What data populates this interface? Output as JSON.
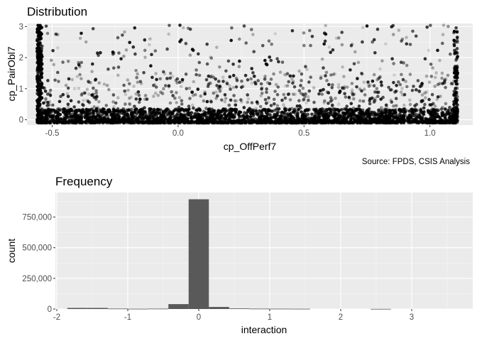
{
  "chart_data": [
    {
      "type": "scatter",
      "title": "Distribution",
      "xlabel": "cp_OffPerf7",
      "ylabel": "cp_PairObl7",
      "caption": "Source: FPDS, CSIS Analysis",
      "xlim": [
        -0.6,
        1.17
      ],
      "ylim": [
        -0.17,
        3.1
      ],
      "x_ticks": [
        -0.5,
        0.0,
        0.5,
        1.0
      ],
      "x_tick_labels": [
        "-0.5",
        "0.0",
        "0.5",
        "1.0"
      ],
      "y_ticks": [
        0,
        1,
        2,
        3
      ],
      "y_tick_labels": [
        "0",
        "1",
        "2",
        "3"
      ],
      "x_range_of_points": [
        -0.56,
        1.11
      ],
      "y_range_of_points": [
        -0.1,
        3.05
      ],
      "point_color": "#000000",
      "point_alpha": 0.2,
      "note": "dense band of points near y = 0 across the full x range, sparser points up to y = 3, dense columns at x = -0.56 and x = 1.11"
    },
    {
      "type": "bar",
      "title": "Frequency",
      "xlabel": "interaction",
      "ylabel": "count",
      "xlim": [
        -2.02,
        3.86
      ],
      "ylim": [
        0,
        950000
      ],
      "x_ticks": [
        -2,
        -1,
        0,
        1,
        2,
        3
      ],
      "x_tick_labels": [
        "-2",
        "-1",
        "0",
        "1",
        "2",
        "3"
      ],
      "y_ticks": [
        0,
        250000,
        500000,
        750000
      ],
      "y_tick_labels": [
        "0",
        "250,000",
        "500,000",
        "750,000"
      ],
      "bin_width": 0.285,
      "bin_centers": [
        -1.71,
        -1.425,
        -1.14,
        -0.855,
        -0.57,
        -0.285,
        0.0,
        0.285,
        0.57,
        0.855,
        1.14,
        1.425,
        1.71,
        1.995,
        2.28,
        2.565,
        2.85,
        3.135,
        3.42
      ],
      "values": [
        9000,
        9000,
        3500,
        2000,
        3000,
        40000,
        895000,
        17000,
        5000,
        3000,
        2500,
        2000,
        0,
        0,
        0,
        1000,
        0,
        0,
        0
      ],
      "bar_color": "#595959"
    }
  ]
}
